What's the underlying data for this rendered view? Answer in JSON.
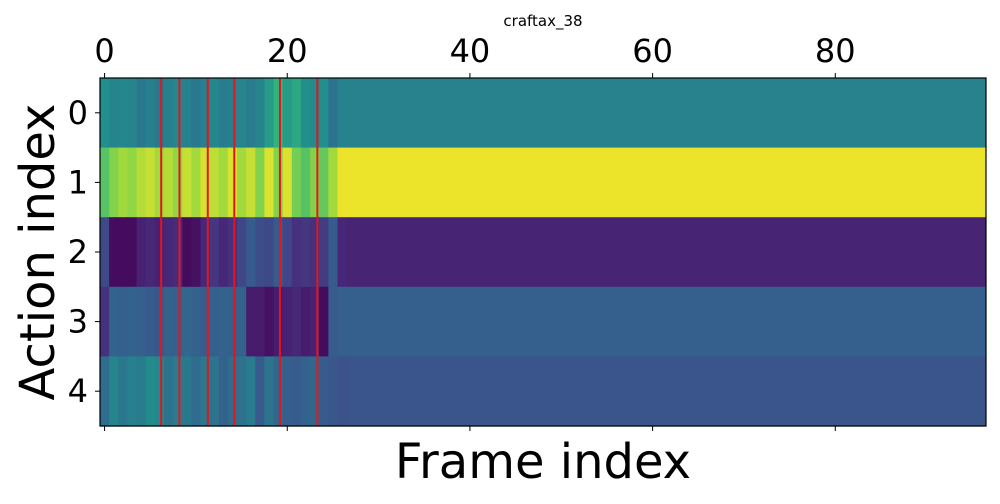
{
  "chart_data": {
    "type": "heatmap",
    "title": "craftax_38",
    "xlabel": "Frame index",
    "ylabel": "Action index",
    "x_ticks": [
      0,
      20,
      40,
      60,
      80
    ],
    "y_ticks": [
      0,
      1,
      2,
      3,
      4
    ],
    "x_range": [
      -0.5,
      96.5
    ],
    "y_range": [
      -0.5,
      4.5
    ],
    "colormap": "viridis",
    "value_range": [
      0,
      1
    ],
    "grid": false,
    "rows": [
      {
        "action": 0,
        "cells": [
          [
            0,
            0.62
          ],
          [
            1,
            0.56
          ],
          [
            2,
            0.58
          ],
          [
            3,
            0.56
          ],
          [
            4,
            0.5
          ],
          [
            5,
            0.54
          ],
          [
            6,
            0.5
          ],
          [
            7,
            0.54
          ],
          [
            8,
            0.58
          ],
          [
            9,
            0.54
          ],
          [
            10,
            0.5
          ],
          [
            11,
            0.54
          ],
          [
            12,
            0.58
          ],
          [
            13,
            0.52
          ],
          [
            14,
            0.54
          ],
          [
            15,
            0.56
          ],
          [
            16,
            0.52
          ],
          [
            17,
            0.56
          ],
          [
            18,
            0.66
          ],
          [
            19,
            0.74
          ],
          [
            20,
            0.66
          ],
          [
            21,
            0.7
          ],
          [
            22,
            0.62
          ],
          [
            23,
            0.6
          ],
          [
            24,
            0.62
          ],
          [
            25,
            0.48
          ],
          [
            26,
            0.55
          ]
        ]
      },
      {
        "action": 1,
        "cells": [
          [
            0,
            0.8
          ],
          [
            1,
            0.86
          ],
          [
            2,
            0.9
          ],
          [
            3,
            0.88
          ],
          [
            4,
            0.92
          ],
          [
            5,
            0.94
          ],
          [
            6,
            0.9
          ],
          [
            7,
            0.92
          ],
          [
            8,
            0.88
          ],
          [
            9,
            0.94
          ],
          [
            10,
            0.9
          ],
          [
            11,
            0.96
          ],
          [
            12,
            0.93
          ],
          [
            13,
            0.9
          ],
          [
            14,
            0.96
          ],
          [
            15,
            0.9
          ],
          [
            16,
            0.94
          ],
          [
            17,
            0.86
          ],
          [
            18,
            0.96
          ],
          [
            19,
            0.86
          ],
          [
            20,
            0.96
          ],
          [
            21,
            0.84
          ],
          [
            22,
            0.8
          ],
          [
            23,
            0.86
          ],
          [
            24,
            0.82
          ],
          [
            25,
            0.9
          ],
          [
            26,
            0.98
          ]
        ]
      },
      {
        "action": 2,
        "cells": [
          [
            0,
            0.28
          ],
          [
            1,
            0.04
          ],
          [
            2,
            0.04
          ],
          [
            3,
            0.04
          ],
          [
            4,
            0.12
          ],
          [
            5,
            0.14
          ],
          [
            6,
            0.12
          ],
          [
            7,
            0.14
          ],
          [
            8,
            0.16
          ],
          [
            9,
            0.04
          ],
          [
            10,
            0.06
          ],
          [
            11,
            0.14
          ],
          [
            12,
            0.2
          ],
          [
            13,
            0.14
          ],
          [
            14,
            0.18
          ],
          [
            15,
            0.26
          ],
          [
            16,
            0.36
          ],
          [
            17,
            0.3
          ],
          [
            18,
            0.28
          ],
          [
            19,
            0.36
          ],
          [
            20,
            0.26
          ],
          [
            21,
            0.18
          ],
          [
            22,
            0.2
          ],
          [
            23,
            0.18
          ],
          [
            24,
            0.22
          ],
          [
            25,
            0.36
          ],
          [
            26,
            0.14
          ]
        ]
      },
      {
        "action": 3,
        "cells": [
          [
            0,
            0.18
          ],
          [
            1,
            0.4
          ],
          [
            2,
            0.38
          ],
          [
            3,
            0.4
          ],
          [
            4,
            0.38
          ],
          [
            5,
            0.36
          ],
          [
            6,
            0.34
          ],
          [
            7,
            0.4
          ],
          [
            8,
            0.38
          ],
          [
            9,
            0.42
          ],
          [
            10,
            0.4
          ],
          [
            11,
            0.36
          ],
          [
            12,
            0.38
          ],
          [
            13,
            0.4
          ],
          [
            14,
            0.38
          ],
          [
            15,
            0.4
          ],
          [
            16,
            0.1
          ],
          [
            17,
            0.1
          ],
          [
            18,
            0.06
          ],
          [
            19,
            0.1
          ],
          [
            20,
            0.12
          ],
          [
            21,
            0.14
          ],
          [
            22,
            0.1
          ],
          [
            23,
            0.12
          ],
          [
            24,
            0.04
          ],
          [
            25,
            0.36
          ],
          [
            26,
            0.38
          ]
        ]
      },
      {
        "action": 4,
        "cells": [
          [
            0,
            0.44
          ],
          [
            1,
            0.56
          ],
          [
            2,
            0.5
          ],
          [
            3,
            0.54
          ],
          [
            4,
            0.52
          ],
          [
            5,
            0.6
          ],
          [
            6,
            0.58
          ],
          [
            7,
            0.48
          ],
          [
            8,
            0.52
          ],
          [
            9,
            0.5
          ],
          [
            10,
            0.44
          ],
          [
            11,
            0.5
          ],
          [
            12,
            0.48
          ],
          [
            13,
            0.4
          ],
          [
            14,
            0.44
          ],
          [
            15,
            0.46
          ],
          [
            16,
            0.52
          ],
          [
            17,
            0.36
          ],
          [
            18,
            0.48
          ],
          [
            19,
            0.42
          ],
          [
            20,
            0.38
          ],
          [
            21,
            0.36
          ],
          [
            22,
            0.4
          ],
          [
            23,
            0.42
          ],
          [
            24,
            0.36
          ],
          [
            25,
            0.34
          ],
          [
            26,
            0.32
          ]
        ]
      }
    ],
    "steady_state": {
      "from_frame": 27,
      "to_frame": 96,
      "values": [
        0.55,
        0.98,
        0.13,
        0.38,
        0.33
      ]
    },
    "vertical_markers": {
      "color": "#e8141c",
      "x": [
        6.2,
        8.2,
        11.3,
        14.2,
        19.2,
        23.3
      ]
    }
  }
}
